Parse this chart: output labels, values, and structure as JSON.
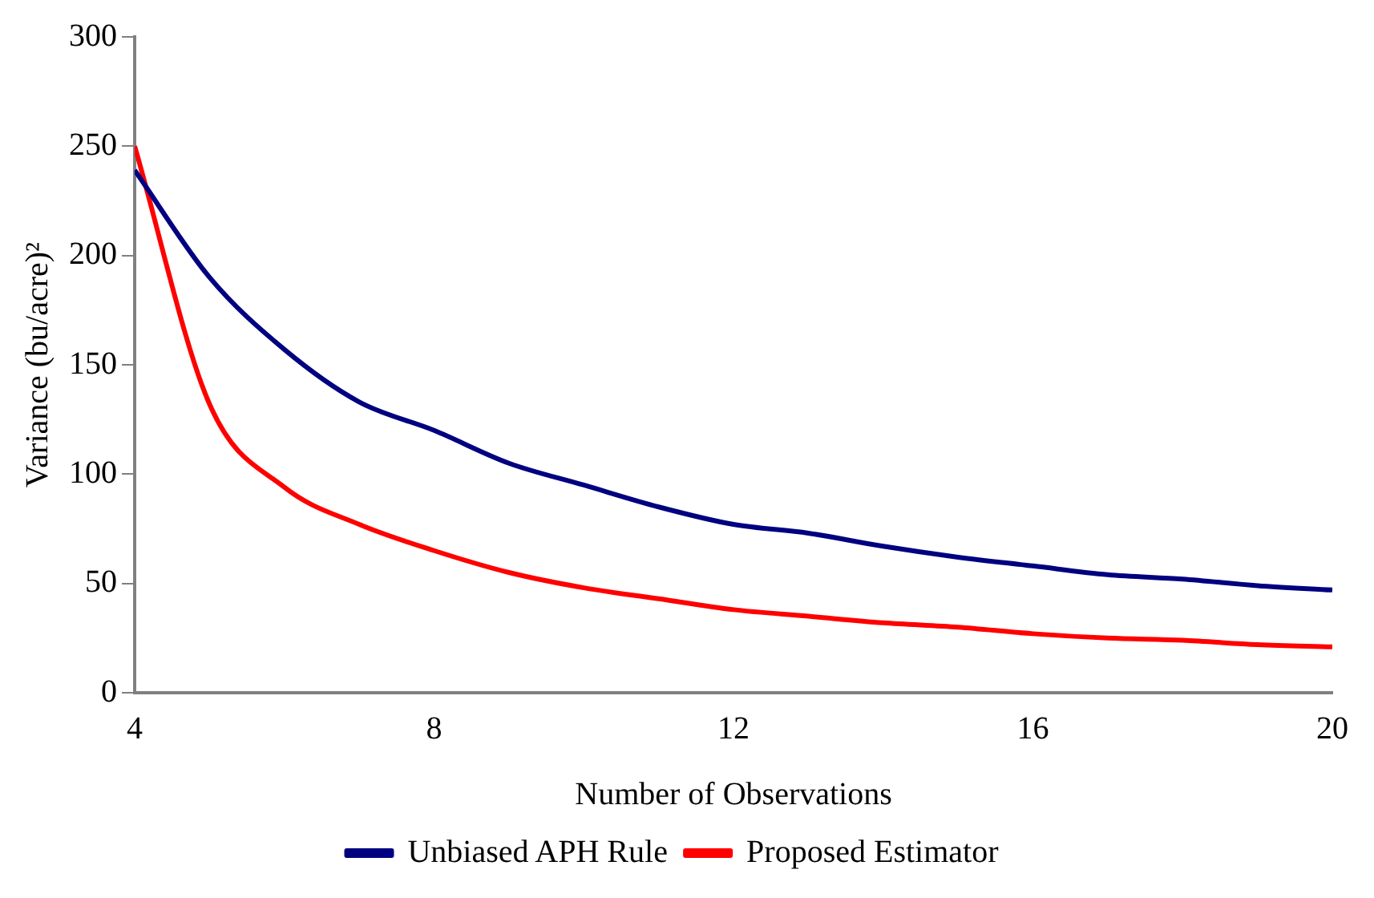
{
  "chart_data": {
    "type": "line",
    "xlabel": "Number of Observations",
    "ylabel": "Variance (bu/acre)²",
    "x": [
      4,
      5,
      6,
      7,
      8,
      9,
      10,
      11,
      12,
      13,
      14,
      15,
      16,
      17,
      18,
      19,
      20
    ],
    "series": [
      {
        "name": "Unbiased APH Rule",
        "color": "#000080",
        "values": [
          239,
          190,
          157,
          133,
          120,
          105,
          95,
          85,
          77,
          73,
          67,
          62,
          58,
          54,
          52,
          49,
          47
        ]
      },
      {
        "name": "Proposed Estimator",
        "color": "#ff0000",
        "values": [
          250,
          132,
          94,
          77,
          65,
          55,
          48,
          43,
          38,
          35,
          32,
          30,
          27,
          25,
          24,
          22,
          21
        ]
      }
    ],
    "xlim": [
      4,
      20
    ],
    "xticks": [
      4,
      8,
      12,
      16,
      20
    ],
    "ylim": [
      0,
      300
    ],
    "yticks": [
      0,
      50,
      100,
      150,
      200,
      250,
      300
    ],
    "grid": false,
    "legend": "bottom",
    "line_style": "solid"
  }
}
